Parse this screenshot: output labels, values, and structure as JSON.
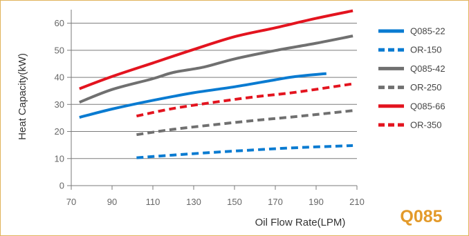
{
  "chart_data": {
    "type": "line",
    "title": "",
    "xlabel": "Oil Flow Rate(LPM)",
    "ylabel": "Heat Capacity(kW)",
    "xlim": [
      70,
      210
    ],
    "ylim": [
      0,
      65
    ],
    "xticks": [
      70,
      90,
      110,
      130,
      150,
      170,
      190,
      210
    ],
    "yticks": [
      0,
      10,
      20,
      30,
      40,
      50,
      60
    ],
    "grid": "horizontal",
    "legend_position": "right",
    "series": [
      {
        "name": "Q085-22",
        "color": "#0a7bd1",
        "style": "solid",
        "x": [
          74,
          90,
          110,
          130,
          150,
          170,
          180,
          195
        ],
        "y": [
          25.2,
          28.3,
          31.5,
          34.3,
          36.5,
          39.1,
          40.3,
          41.4
        ]
      },
      {
        "name": "OR-150",
        "color": "#0a7bd1",
        "style": "dashed",
        "x": [
          102,
          120,
          140,
          160,
          180,
          208
        ],
        "y": [
          10.3,
          11.3,
          12.3,
          13.2,
          14.0,
          14.8
        ]
      },
      {
        "name": "Q085-42",
        "color": "#707070",
        "style": "solid",
        "x": [
          74,
          90,
          110,
          120,
          135,
          150,
          170,
          190,
          208
        ],
        "y": [
          30.8,
          35.5,
          39.5,
          41.8,
          43.8,
          46.8,
          49.9,
          52.6,
          55.3
        ]
      },
      {
        "name": "OR-250",
        "color": "#707070",
        "style": "dashed",
        "x": [
          102,
          120,
          140,
          160,
          180,
          208
        ],
        "y": [
          18.8,
          20.8,
          22.5,
          24.1,
          25.5,
          27.7
        ]
      },
      {
        "name": "Q085-66",
        "color": "#e3141f",
        "style": "solid",
        "x": [
          74,
          90,
          110,
          130,
          150,
          170,
          190,
          208
        ],
        "y": [
          35.8,
          40.3,
          45.3,
          50.3,
          55.0,
          58.3,
          61.8,
          64.6
        ]
      },
      {
        "name": "OR-350",
        "color": "#e3141f",
        "style": "dashed",
        "x": [
          102,
          120,
          140,
          160,
          180,
          208
        ],
        "y": [
          25.7,
          28.5,
          30.8,
          32.8,
          34.5,
          37.6
        ]
      }
    ],
    "brand": "Q085"
  }
}
